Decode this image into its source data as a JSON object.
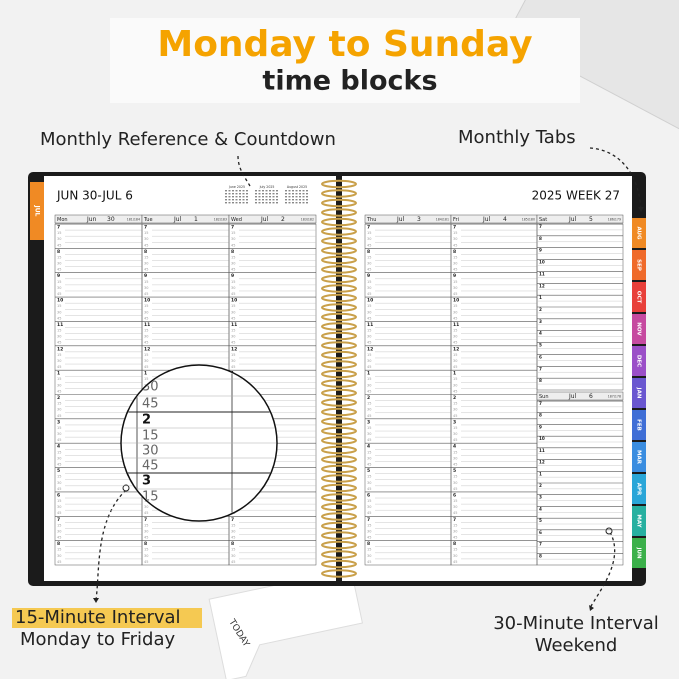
{
  "header": {
    "title": "Monday to Sunday",
    "subtitle": "time blocks"
  },
  "callouts": {
    "reference": "Monthly Reference & Countdown",
    "tabs": "Monthly Tabs",
    "weekday_interval": "15-Minute Interval",
    "weekday_days": "Monday to Friday",
    "weekend_interval": "30-Minute Interval",
    "weekend_days": "Weekend"
  },
  "planner": {
    "range": "JUN 30-JUL 6",
    "week": "2025 WEEK 27",
    "current_tab": "JUL",
    "mini_calendars": [
      "June 2025",
      "July 2025",
      "August 2025"
    ],
    "hours": [
      "7",
      "8",
      "9",
      "10",
      "11",
      "12",
      "1",
      "2",
      "3",
      "4",
      "5",
      "6",
      "7",
      "8"
    ],
    "quarters": [
      "15",
      "30",
      "45"
    ],
    "days": [
      {
        "weekday": "Mon",
        "month": "Jun",
        "date": "30",
        "count": "181/184"
      },
      {
        "weekday": "Tue",
        "month": "Jul",
        "date": "1",
        "count": "182/183"
      },
      {
        "weekday": "Wed",
        "month": "Jul",
        "date": "2",
        "count": "183/182"
      },
      {
        "weekday": "Thu",
        "month": "Jul",
        "date": "3",
        "count": "184/181"
      },
      {
        "weekday": "Fri",
        "month": "Jul",
        "date": "4",
        "count": "185/180"
      },
      {
        "weekday": "Sat",
        "month": "Jul",
        "date": "5",
        "count": "186/179"
      },
      {
        "weekday": "Sun",
        "month": "Jul",
        "date": "6",
        "count": "187/178"
      }
    ],
    "tabs": [
      {
        "label": "AUG",
        "color": "#f08a24"
      },
      {
        "label": "SEP",
        "color": "#ef6a2a"
      },
      {
        "label": "OCT",
        "color": "#e8403a"
      },
      {
        "label": "NOV",
        "color": "#c64aa0"
      },
      {
        "label": "DEC",
        "color": "#9b4fc8"
      },
      {
        "label": "JAN",
        "color": "#6a57d0"
      },
      {
        "label": "FEB",
        "color": "#3f6ed6"
      },
      {
        "label": "MAR",
        "color": "#3a8de0"
      },
      {
        "label": "APR",
        "color": "#2aa6d8"
      },
      {
        "label": "MAY",
        "color": "#27b0a0"
      },
      {
        "label": "JUN",
        "color": "#3bb04a"
      }
    ],
    "magnifier": [
      "30",
      "45",
      "2",
      "15",
      "30",
      "45",
      "3",
      "15"
    ],
    "bookmark": "TODAY"
  }
}
